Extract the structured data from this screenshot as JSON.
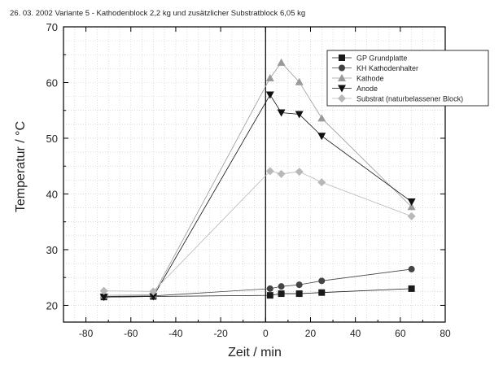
{
  "chart_data": {
    "type": "line",
    "title": "26. 03. 2002 Variante 5 - Kathodenblock 2,2 kg und zusätzlicher Substratblock 6,05 kg",
    "xlabel": "Zeit / min",
    "ylabel": "Temperatur / °C",
    "xlim": [
      -90,
      80
    ],
    "ylim": [
      17,
      70
    ],
    "xticks": [
      -80,
      -60,
      -40,
      -20,
      0,
      20,
      40,
      60,
      80
    ],
    "yticks": [
      20,
      30,
      40,
      50,
      60,
      70
    ],
    "grid": true,
    "legend_position": "top-right",
    "reference_line_x": 0,
    "series": [
      {
        "name": "GP Grundplatte",
        "marker": "square",
        "color": "#1a1a1a",
        "points": [
          [
            -72,
            21.5
          ],
          [
            -50,
            21.6
          ],
          [
            2,
            21.8
          ],
          [
            7,
            22.1
          ],
          [
            15,
            22.1
          ],
          [
            25,
            22.3
          ],
          [
            65,
            23.0
          ]
        ]
      },
      {
        "name": "KH Kathodenhalter",
        "marker": "circle",
        "color": "#444444",
        "points": [
          [
            -72,
            21.6
          ],
          [
            -50,
            21.7
          ],
          [
            2,
            23.0
          ],
          [
            7,
            23.4
          ],
          [
            15,
            23.7
          ],
          [
            25,
            24.4
          ],
          [
            65,
            26.5
          ]
        ]
      },
      {
        "name": "Kathode",
        "marker": "triangle-up",
        "color": "#9a9a9a",
        "points": [
          [
            -72,
            21.8
          ],
          [
            -50,
            21.9
          ],
          [
            2,
            60.8
          ],
          [
            7,
            63.6
          ],
          [
            15,
            60.1
          ],
          [
            25,
            53.6
          ],
          [
            65,
            37.7
          ]
        ]
      },
      {
        "name": "Anode",
        "marker": "triangle-down",
        "color": "#111111",
        "points": [
          [
            -72,
            21.5
          ],
          [
            -50,
            21.6
          ],
          [
            2,
            57.8
          ],
          [
            7,
            54.6
          ],
          [
            15,
            54.3
          ],
          [
            25,
            50.4
          ],
          [
            65,
            38.6
          ]
        ]
      },
      {
        "name": "Substrat (naturbelassener Block)",
        "marker": "diamond",
        "color": "#b8b8b8",
        "points": [
          [
            -72,
            22.6
          ],
          [
            -50,
            22.5
          ],
          [
            2,
            44.1
          ],
          [
            7,
            43.6
          ],
          [
            15,
            44.0
          ],
          [
            25,
            42.1
          ],
          [
            65,
            36.0
          ]
        ]
      }
    ]
  }
}
